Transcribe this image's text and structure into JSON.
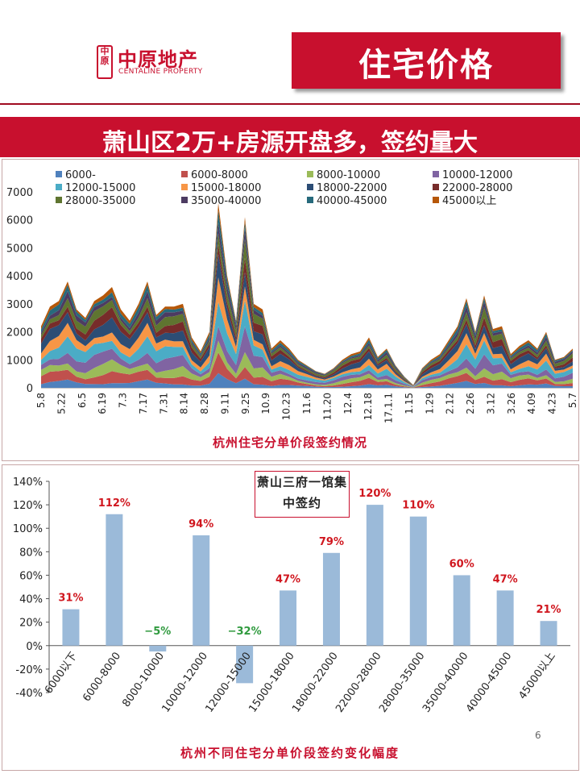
{
  "logo": {
    "seal": "中原",
    "name_cn": "中原地产",
    "name_en": "CENTALINE PROPERTY"
  },
  "header": {
    "title": "住宅价格"
  },
  "banner": {
    "text": "萧山区2万+房源开盘多，签约量大"
  },
  "chart_data": [
    {
      "type": "area",
      "stacked": true,
      "caption": "杭州住宅分单价段签约情况",
      "ylim": [
        0,
        7000
      ],
      "yticks": [
        0,
        1000,
        2000,
        3000,
        4000,
        5000,
        6000,
        7000
      ],
      "x_tick_labels": [
        "5.8",
        "5.22",
        "6.5",
        "6.19",
        "7.3",
        "7.17",
        "7.31",
        "8.14",
        "8.28",
        "9.11",
        "9.25",
        "10.9",
        "10.23",
        "11.6",
        "11.20",
        "12.4",
        "12.18",
        "17.1.1",
        "1.15",
        "1.29",
        "2.12",
        "2.26",
        "3.12",
        "3.26",
        "4.09",
        "4.23",
        "5.7"
      ],
      "legend": [
        "6000-",
        "6000-8000",
        "8000-10000",
        "10000-12000",
        "12000-15000",
        "15000-18000",
        "18000-22000",
        "22000-28000",
        "28000-35000",
        "35000-40000",
        "40000-45000",
        "45000以上"
      ],
      "totals": [
        2200,
        2900,
        3100,
        3800,
        2800,
        2500,
        3100,
        3300,
        3600,
        2800,
        2400,
        3000,
        3800,
        2600,
        2900,
        2900,
        3000,
        1800,
        1300,
        2000,
        6600,
        4000,
        2400,
        6100,
        3000,
        2800,
        1400,
        1700,
        1400,
        1000,
        800,
        600,
        500,
        700,
        1000,
        1200,
        1300,
        1800,
        1100,
        1400,
        800,
        400,
        100,
        700,
        1000,
        1200,
        1700,
        2200,
        3200,
        2000,
        3300,
        2100,
        2200,
        1200,
        1500,
        1700,
        1400,
        2000,
        1000,
        1100,
        1400
      ]
    },
    {
      "type": "bar",
      "caption": "杭州不同住宅分单价段签约变化幅度",
      "categories": [
        "6000以下",
        "6000-8000",
        "8000-10000",
        "10000-12000",
        "12000-15000",
        "15000-18000",
        "18000-22000",
        "22000-28000",
        "28000-35000",
        "35000-40000",
        "40000-45000",
        "45000以上"
      ],
      "values": [
        31,
        112,
        -5,
        94,
        -32,
        47,
        79,
        120,
        110,
        60,
        47,
        21
      ],
      "labels": [
        "31%",
        "112%",
        "−5%",
        "94%",
        "−32%",
        "47%",
        "79%",
        "120%",
        "110%",
        "60%",
        "47%",
        "21%"
      ],
      "ylim": [
        -40,
        140
      ],
      "ytick_labels": [
        "-40%",
        "-20%",
        "0%",
        "20%",
        "40%",
        "60%",
        "80%",
        "100%",
        "120%",
        "140%"
      ],
      "annotation": "萧山三府一馆集中签约",
      "colors": {
        "bar": "#9bbad9",
        "positive_label": "#d0161e",
        "negative_label": "#2f9a3e"
      }
    }
  ],
  "page": {
    "number": "6"
  }
}
